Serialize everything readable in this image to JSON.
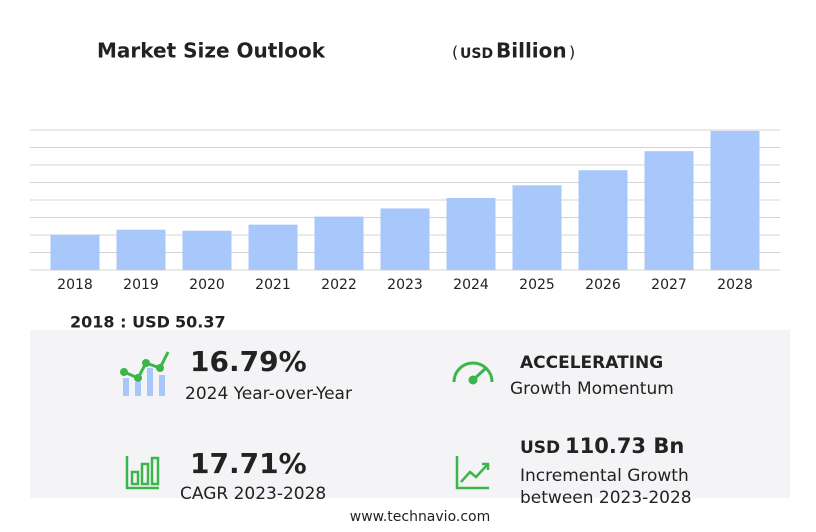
{
  "chart_data": {
    "type": "bar",
    "title": "Market Size Outlook",
    "unit": [
      "(",
      "USD",
      "Billion",
      ")"
    ],
    "categories": [
      "2018",
      "2019",
      "2020",
      "2021",
      "2022",
      "2023",
      "2024",
      "2025",
      "2026",
      "2027",
      "2028"
    ],
    "values": [
      50.37,
      57.6,
      56.1,
      64.8,
      76.3,
      88,
      102.8,
      121,
      142.6,
      169.8,
      198.7
    ],
    "color": "#a8c8fb",
    "ylim": [
      0,
      200
    ],
    "yticks": [
      0,
      25,
      50,
      75,
      100,
      125,
      150,
      175,
      200
    ],
    "grid": true
  },
  "summary": {
    "base_label": "2018 : USD",
    "base_value": 50.37,
    "kpis": [
      {
        "value_label": "16.79%",
        "caption": "2024 Year-over-Year"
      },
      {
        "heading": "ACCELERATING",
        "caption": "Growth Momentum"
      },
      {
        "value_label": "17.71%",
        "caption": "CAGR 2023-2028"
      },
      {
        "prefix": "USD",
        "value_label": "110.73 Bn",
        "caption": "Incremental Growth",
        "caption2": "between 2023-2028"
      }
    ]
  },
  "footer": "www.technavio.com"
}
